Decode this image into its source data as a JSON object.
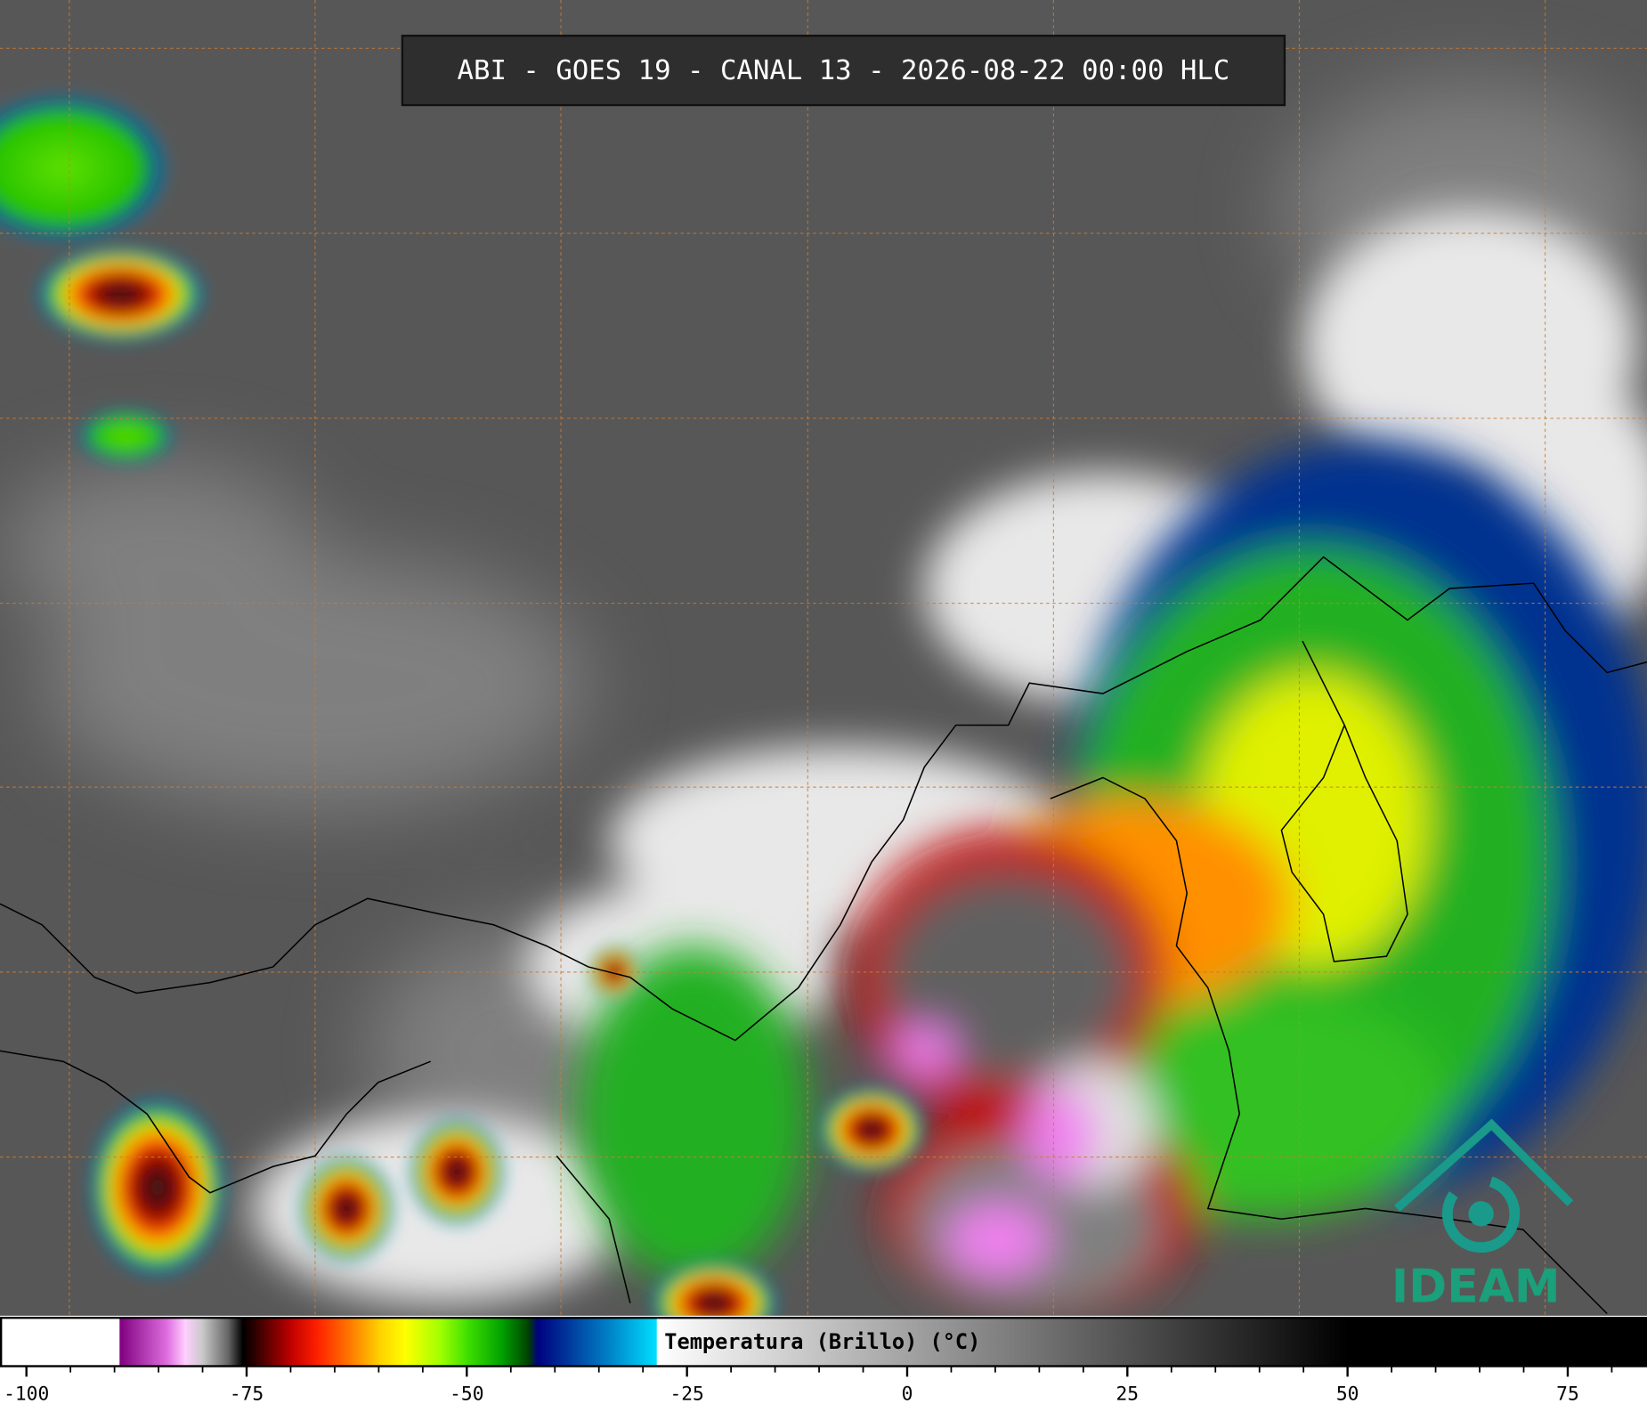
{
  "header": {
    "title": "ABI - GOES 19 - CANAL 13 - 2026-08-22 00:00 HLC"
  },
  "colorbar": {
    "label": "Temperatura (Brillo) (°C)",
    "xlim": [
      -103,
      84
    ],
    "xticks": [
      -100,
      -75,
      -50,
      -25,
      0,
      25,
      50,
      75
    ],
    "minor_xticks": [
      -95,
      -90,
      -85,
      -80,
      -70,
      -65,
      -60,
      -55,
      -45,
      -40,
      -35,
      -30,
      -20,
      -15,
      -10,
      -5,
      5,
      10,
      15,
      20,
      30,
      35,
      40,
      45,
      55,
      60,
      65,
      70,
      80
    ],
    "colormap": [
      {
        "value": -103,
        "color": "#ffffff"
      },
      {
        "value": -89.5,
        "color": "#ffffff"
      },
      {
        "value": -89.4,
        "color": "#800080"
      },
      {
        "value": -84,
        "color": "#e070e0"
      },
      {
        "value": -82,
        "color": "#ffd0ff"
      },
      {
        "value": -80,
        "color": "#c8c8c8"
      },
      {
        "value": -77,
        "color": "#606060"
      },
      {
        "value": -75.5,
        "color": "#000000"
      },
      {
        "value": -74,
        "color": "#300000"
      },
      {
        "value": -70,
        "color": "#c00000"
      },
      {
        "value": -67,
        "color": "#ff2000"
      },
      {
        "value": -63,
        "color": "#ff8000"
      },
      {
        "value": -60,
        "color": "#ffd000"
      },
      {
        "value": -57,
        "color": "#ffff00"
      },
      {
        "value": -53,
        "color": "#a0ff00"
      },
      {
        "value": -50,
        "color": "#40e000"
      },
      {
        "value": -46,
        "color": "#00a000"
      },
      {
        "value": -43,
        "color": "#004000"
      },
      {
        "value": -42,
        "color": "#000080"
      },
      {
        "value": -38,
        "color": "#0040a0"
      },
      {
        "value": -33,
        "color": "#0090d0"
      },
      {
        "value": -28.5,
        "color": "#00e0ff"
      },
      {
        "value": -28.4,
        "color": "#ffffff"
      },
      {
        "value": 50,
        "color": "#000000"
      },
      {
        "value": 84,
        "color": "#000000"
      }
    ]
  },
  "logo": {
    "text": "IDEAM"
  }
}
